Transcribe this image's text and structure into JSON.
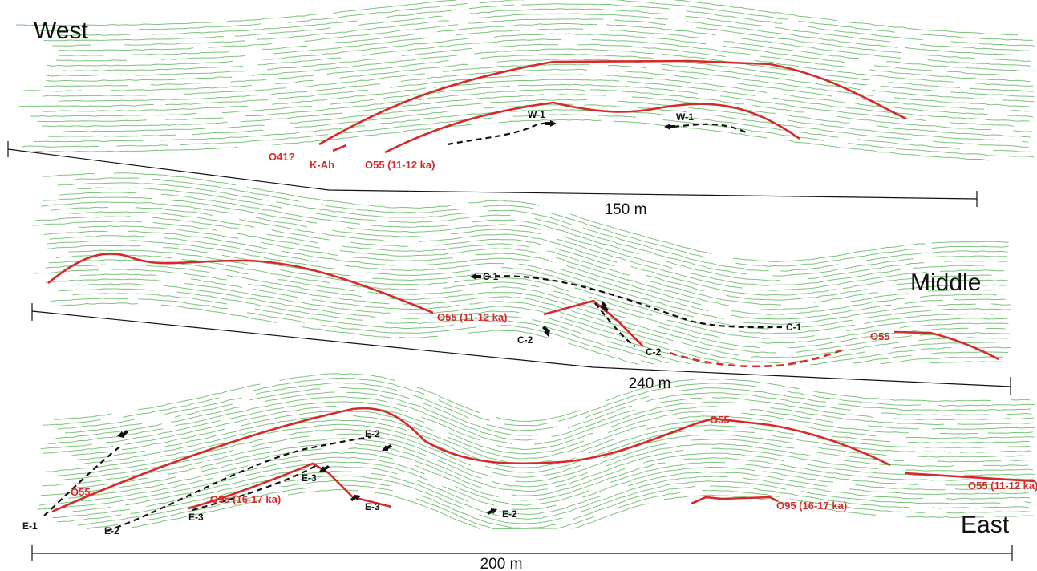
{
  "panels": [
    {
      "title": "West",
      "scale": "150 m",
      "labels": [
        "O41?",
        "K-Ah",
        "O55 (11-12 ka)",
        "W-1",
        "W-1"
      ]
    },
    {
      "title": "Middle",
      "scale": "240 m",
      "labels": [
        "O55 (11-12 ka)",
        "C-1",
        "C-1",
        "C-2",
        "C-2",
        "O55"
      ]
    },
    {
      "title": "East",
      "scale": "200 m",
      "labels": [
        "O55",
        "O95 (16-17 ka)",
        "E-2",
        "E-3",
        "E-3",
        "E-3",
        "E-2",
        "E-1",
        "E-2",
        "O55",
        "O55 (11-12 ka)",
        "O95 (16-17 ka)"
      ]
    }
  ]
}
